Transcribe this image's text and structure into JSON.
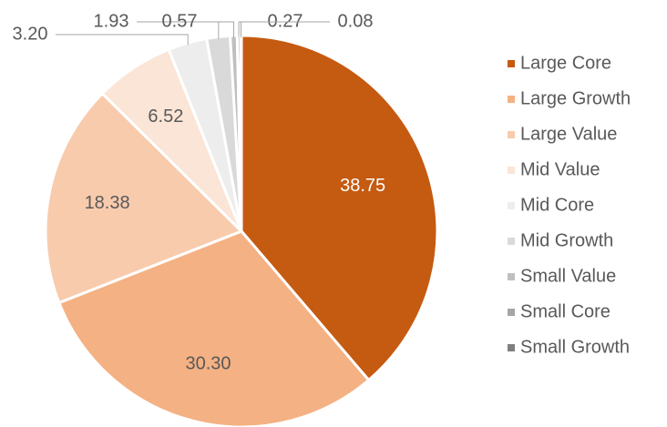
{
  "chart_data": {
    "type": "pie",
    "categories": [
      "Large Core",
      "Large Growth",
      "Large Value",
      "Mid Value",
      "Mid Core",
      "Mid Growth",
      "Small Value",
      "Small Core",
      "Small Growth"
    ],
    "values": [
      38.75,
      30.3,
      18.38,
      6.52,
      3.2,
      1.93,
      0.57,
      0.27,
      0.08
    ],
    "value_labels": [
      "38.75",
      "30.30",
      "18.38",
      "6.52",
      "3.20",
      "1.93",
      "0.57",
      "0.27",
      "0.08"
    ],
    "colors": [
      "#c55a11",
      "#f4b183",
      "#f8cbad",
      "#fbe5d6",
      "#ededed",
      "#d9d9d9",
      "#bfbfbf",
      "#a6a6a6",
      "#7f7f7f"
    ],
    "legend": "right"
  }
}
